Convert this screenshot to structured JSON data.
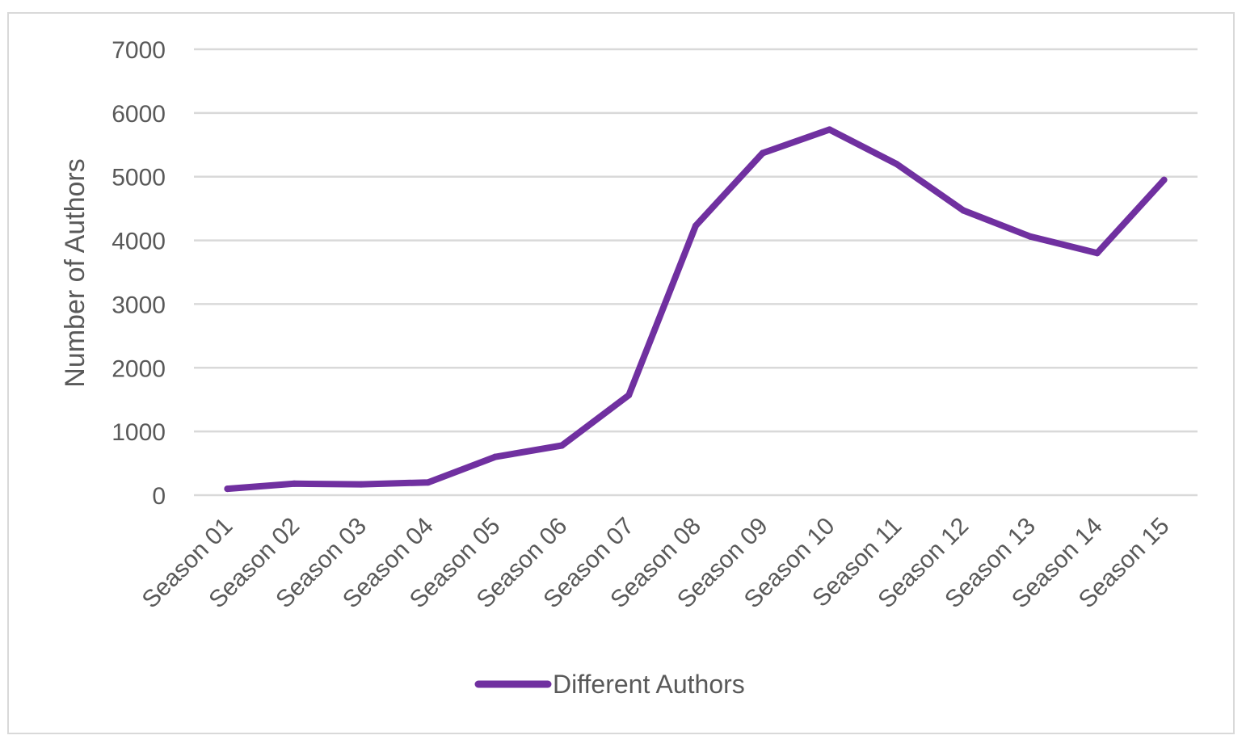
{
  "chart_data": {
    "type": "line",
    "title": "",
    "xlabel": "",
    "ylabel": "Number of Authors",
    "ylim": [
      0,
      7000
    ],
    "yticks": [
      0,
      1000,
      2000,
      3000,
      4000,
      5000,
      6000,
      7000
    ],
    "grid": true,
    "legend_position": "bottom",
    "categories": [
      "Season 01",
      "Season 02",
      "Season 03",
      "Season 04",
      "Season 05",
      "Season 06",
      "Season 07",
      "Season 08",
      "Season 09",
      "Season 10",
      "Season 11",
      "Season 12",
      "Season 13",
      "Season 14",
      "Season 15"
    ],
    "series": [
      {
        "name": "Different Authors",
        "color": "#7030a0",
        "values": [
          100,
          180,
          170,
          200,
          600,
          780,
          1570,
          4230,
          5370,
          5740,
          5200,
          4470,
          4060,
          3800,
          4950
        ]
      }
    ]
  }
}
